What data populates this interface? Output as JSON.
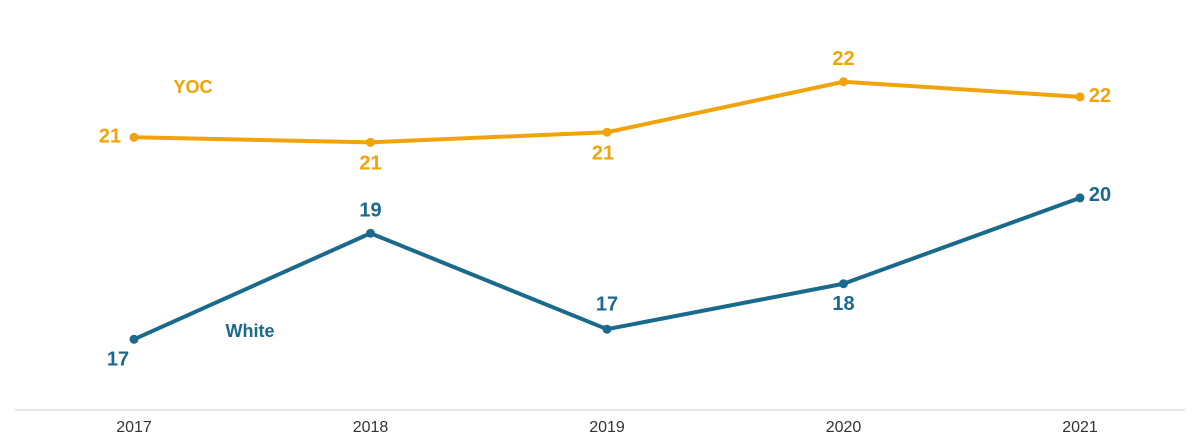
{
  "chart_data": {
    "type": "line",
    "x": [
      "2017",
      "2018",
      "2019",
      "2020",
      "2021"
    ],
    "series": [
      {
        "name": "YOC",
        "color": "#f0a30a",
        "values": [
          20.9,
          20.8,
          21.0,
          22.0,
          21.7
        ],
        "value_labels": [
          "21",
          "21",
          "21",
          "22",
          "22"
        ]
      },
      {
        "name": "White",
        "color": "#1b6a8c",
        "values": [
          16.9,
          19.0,
          17.1,
          18.0,
          19.7
        ],
        "value_labels": [
          "17",
          "19",
          "17",
          "18",
          "20"
        ]
      }
    ],
    "ylim": [
      15.5,
      23.5
    ],
    "grid": false
  }
}
